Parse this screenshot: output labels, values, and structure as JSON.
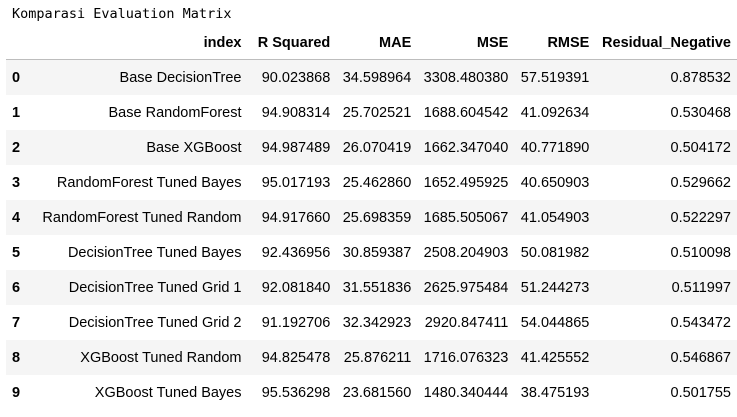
{
  "title": "Komparasi Evaluation Matrix",
  "table": {
    "columns": [
      "",
      "index",
      "R Squared",
      "MAE",
      "MSE",
      "RMSE",
      "Residual_Negative"
    ],
    "rows": [
      {
        "id": "0",
        "index": "Base DecisionTree",
        "r2": "90.023868",
        "mae": "34.598964",
        "mse": "3308.480380",
        "rmse": "57.519391",
        "resneg": "0.878532"
      },
      {
        "id": "1",
        "index": "Base RandomForest",
        "r2": "94.908314",
        "mae": "25.702521",
        "mse": "1688.604542",
        "rmse": "41.092634",
        "resneg": "0.530468"
      },
      {
        "id": "2",
        "index": "Base XGBoost",
        "r2": "94.987489",
        "mae": "26.070419",
        "mse": "1662.347040",
        "rmse": "40.771890",
        "resneg": "0.504172"
      },
      {
        "id": "3",
        "index": "RandomForest Tuned Bayes",
        "r2": "95.017193",
        "mae": "25.462860",
        "mse": "1652.495925",
        "rmse": "40.650903",
        "resneg": "0.529662"
      },
      {
        "id": "4",
        "index": "RandomForest Tuned Random",
        "r2": "94.917660",
        "mae": "25.698359",
        "mse": "1685.505067",
        "rmse": "41.054903",
        "resneg": "0.522297"
      },
      {
        "id": "5",
        "index": "DecisionTree Tuned Bayes",
        "r2": "92.436956",
        "mae": "30.859387",
        "mse": "2508.204903",
        "rmse": "50.081982",
        "resneg": "0.510098"
      },
      {
        "id": "6",
        "index": "DecisionTree Tuned Grid 1",
        "r2": "92.081840",
        "mae": "31.551836",
        "mse": "2625.975484",
        "rmse": "51.244273",
        "resneg": "0.511997"
      },
      {
        "id": "7",
        "index": "DecisionTree Tuned Grid 2",
        "r2": "91.192706",
        "mae": "32.342923",
        "mse": "2920.847411",
        "rmse": "54.044865",
        "resneg": "0.543472"
      },
      {
        "id": "8",
        "index": "XGBoost Tuned Random",
        "r2": "94.825478",
        "mae": "25.876211",
        "mse": "1716.076323",
        "rmse": "41.425552",
        "resneg": "0.546867"
      },
      {
        "id": "9",
        "index": "XGBoost Tuned Bayes",
        "r2": "95.536298",
        "mae": "23.681560",
        "mse": "1480.340444",
        "rmse": "38.475193",
        "resneg": "0.501755"
      }
    ]
  }
}
